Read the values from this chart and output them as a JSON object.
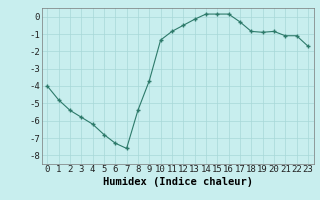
{
  "x": [
    0,
    1,
    2,
    3,
    4,
    5,
    6,
    7,
    8,
    9,
    10,
    11,
    12,
    13,
    14,
    15,
    16,
    17,
    18,
    19,
    20,
    21,
    22,
    23
  ],
  "y": [
    -4.0,
    -4.8,
    -5.4,
    -5.8,
    -6.2,
    -6.8,
    -7.3,
    -7.6,
    -5.4,
    -3.7,
    -1.35,
    -0.85,
    -0.5,
    -0.15,
    0.15,
    0.15,
    0.15,
    -0.3,
    -0.85,
    -0.9,
    -0.85,
    -1.1,
    -1.1,
    -1.7
  ],
  "xlabel": "Humidex (Indice chaleur)",
  "ylim": [
    -8.5,
    0.5
  ],
  "xlim": [
    -0.5,
    23.5
  ],
  "yticks": [
    0,
    -1,
    -2,
    -3,
    -4,
    -5,
    -6,
    -7,
    -8
  ],
  "ytick_labels": [
    "0",
    "-1",
    "-2",
    "-3",
    "-4",
    "-5",
    "-6",
    "-7",
    "-8"
  ],
  "xticks": [
    0,
    1,
    2,
    3,
    4,
    5,
    6,
    7,
    8,
    9,
    10,
    11,
    12,
    13,
    14,
    15,
    16,
    17,
    18,
    19,
    20,
    21,
    22,
    23
  ],
  "line_color": "#2d7a6a",
  "marker_color": "#2d7a6a",
  "bg_color": "#c8eeee",
  "grid_color": "#a8d8d8",
  "tick_label_fontsize": 6.5,
  "xlabel_fontsize": 7.5
}
